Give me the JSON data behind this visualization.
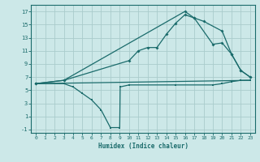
{
  "xlabel": "Humidex (Indice chaleur)",
  "bg_color": "#cce8e8",
  "grid_color": "#aacccc",
  "line_color": "#1a6b6b",
  "xlim": [
    -0.5,
    23.5
  ],
  "ylim": [
    -1.5,
    18
  ],
  "xticks": [
    0,
    1,
    2,
    3,
    4,
    5,
    6,
    7,
    8,
    9,
    10,
    11,
    12,
    13,
    14,
    15,
    16,
    17,
    18,
    19,
    20,
    21,
    22,
    23
  ],
  "yticks": [
    -1,
    1,
    3,
    5,
    7,
    9,
    11,
    13,
    15,
    17
  ],
  "line1_x": [
    0,
    3,
    16,
    17,
    18,
    20,
    21,
    22,
    23
  ],
  "line1_y": [
    6,
    6.5,
    17,
    16.0,
    15.5,
    14.0,
    10.5,
    8.0,
    7.0
  ],
  "line2_x": [
    0,
    3,
    10,
    11,
    12,
    13,
    14,
    15,
    16,
    17,
    19,
    20,
    21,
    22,
    23
  ],
  "line2_y": [
    6,
    6.5,
    9.5,
    11.0,
    11.5,
    11.5,
    13.5,
    15.2,
    16.5,
    16.0,
    12.0,
    12.2,
    10.5,
    8.0,
    7.0
  ],
  "line3_x": [
    0,
    3,
    4,
    5,
    6,
    7,
    8,
    9,
    9.05,
    10,
    15,
    19,
    20,
    21,
    22,
    23
  ],
  "line3_y": [
    6,
    6.0,
    5.5,
    4.5,
    3.5,
    2.0,
    -0.7,
    -0.7,
    5.5,
    5.8,
    5.8,
    5.8,
    6.0,
    6.3,
    6.5,
    6.5
  ],
  "line4_x": [
    0,
    23
  ],
  "line4_y": [
    6,
    6.5
  ]
}
